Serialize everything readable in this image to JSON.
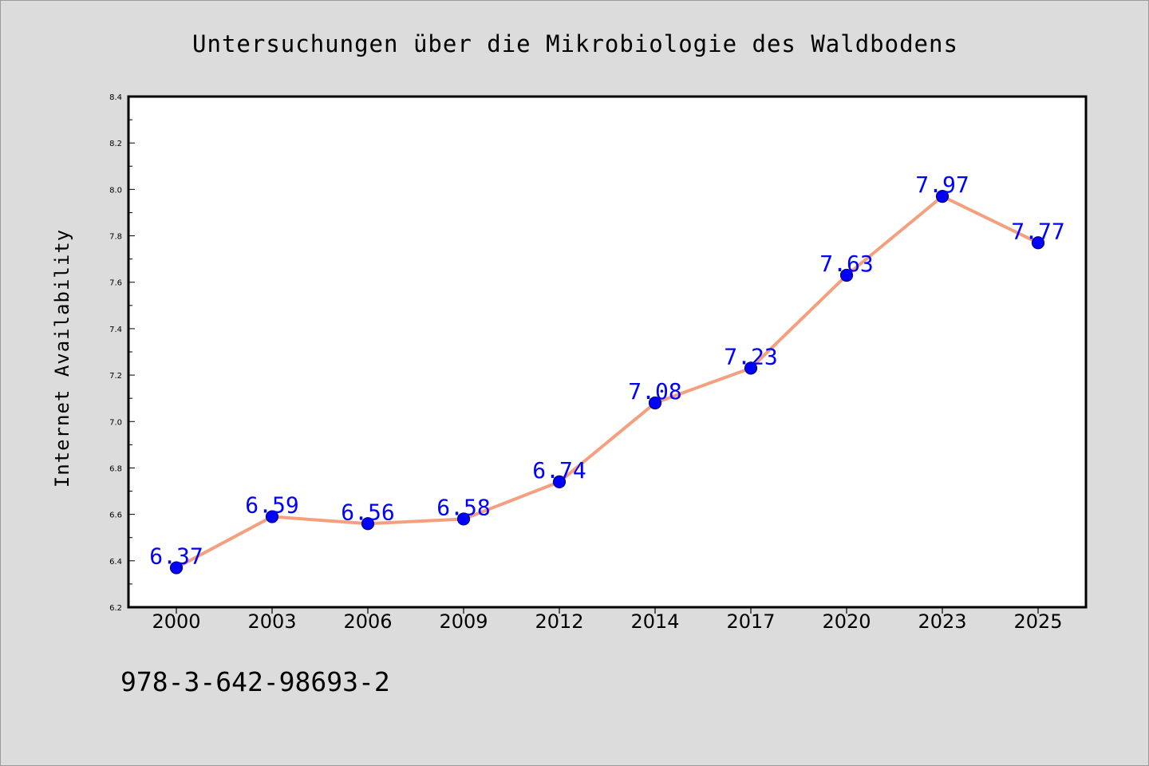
{
  "chart_data": {
    "type": "line",
    "title": "Untersuchungen über die Mikrobiologie des Waldbodens",
    "xlabel": "",
    "ylabel": "Internet Availability",
    "categories": [
      "2000",
      "2003",
      "2006",
      "2009",
      "2012",
      "2014",
      "2017",
      "2020",
      "2023",
      "2025"
    ],
    "series": [
      {
        "values": [
          6.37,
          6.59,
          6.56,
          6.58,
          6.74,
          7.08,
          7.23,
          7.63,
          7.97,
          7.77
        ],
        "data_labels": [
          "6.37",
          "6.59",
          "6.56",
          "6.58",
          "6.74",
          "7.08",
          "7.23",
          "7.63",
          "7.97",
          "7.77"
        ]
      }
    ],
    "ylim": [
      6.2,
      8.4
    ],
    "yticks": [
      "6.2",
      "6.4",
      "6.6",
      "6.8",
      "7.0",
      "7.2",
      "7.4",
      "7.6",
      "7.8",
      "8.0",
      "8.2",
      "8.4"
    ],
    "grid": false,
    "legend": "none",
    "colors": {
      "line": "#f4a07e",
      "marker_fill": "#0000ff",
      "marker_stroke": "#000080",
      "data_label": "#0000ff",
      "background": "#dcdcdc",
      "plot_area": "#ffffff"
    }
  },
  "footer_text": "978-3-642-98693-2"
}
